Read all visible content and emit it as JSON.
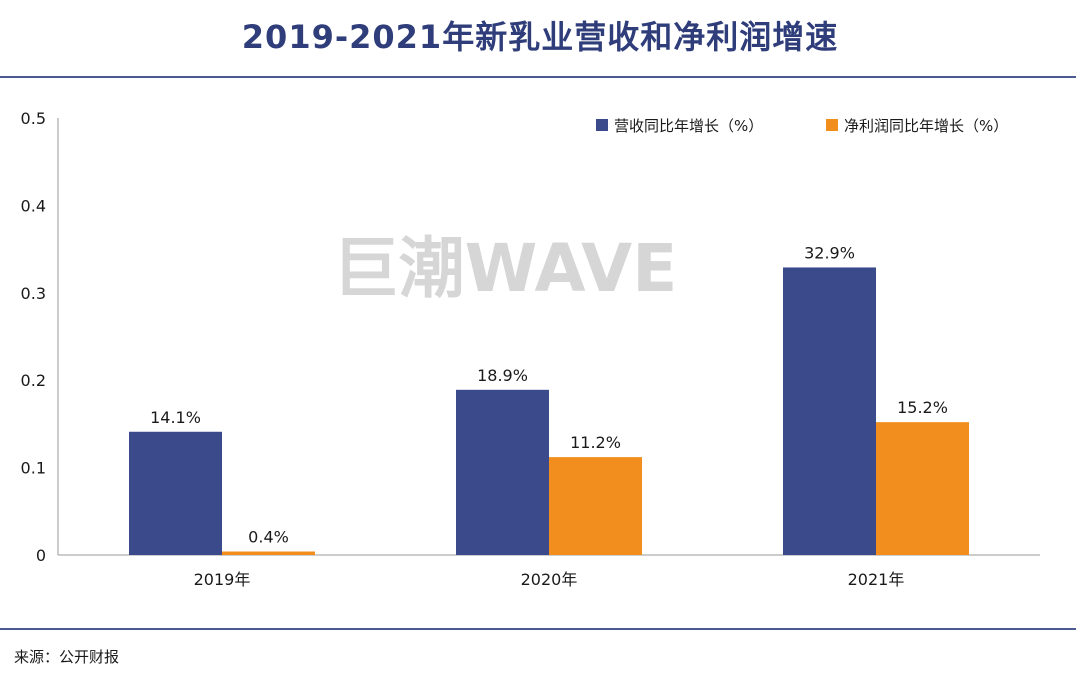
{
  "title": "2019-2021年新乳业营收和净利润增速",
  "source": "来源：公开财报",
  "watermark": "巨潮WAVE",
  "colors": {
    "revenue": "#3a4a8a",
    "profit": "#f28e1e",
    "title": "#2f3d7a",
    "rule": "#4a5a8e"
  },
  "chart_data": {
    "type": "bar",
    "categories": [
      "2019年",
      "2020年",
      "2021年"
    ],
    "series": [
      {
        "name": "营收同比年增长（%）",
        "values": [
          0.141,
          0.189,
          0.329
        ],
        "labels": [
          "14.1%",
          "18.9%",
          "32.9%"
        ]
      },
      {
        "name": "净利润同比年增长（%）",
        "values": [
          0.004,
          0.112,
          0.152
        ],
        "labels": [
          "0.4%",
          "11.2%",
          "15.2%"
        ]
      }
    ],
    "y_ticks": [
      "0",
      "0.1",
      "0.2",
      "0.3",
      "0.4",
      "0.5"
    ],
    "ylim": [
      0,
      0.5
    ],
    "legend_position": "top-right",
    "grid": false
  }
}
